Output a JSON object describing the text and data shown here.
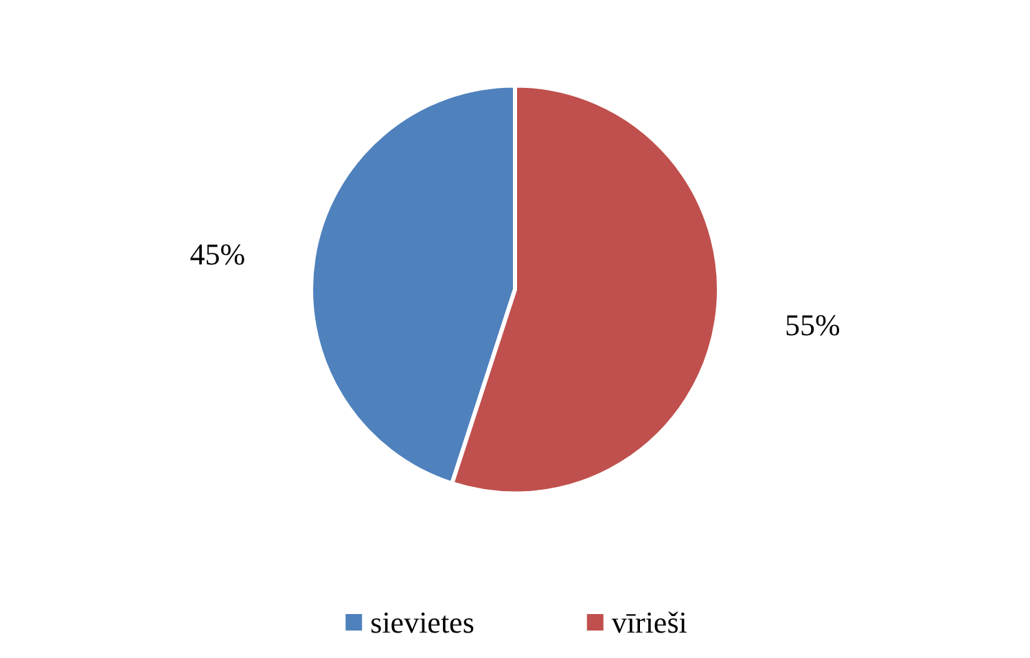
{
  "chart_data": {
    "type": "pie",
    "categories": [
      "sievietes",
      "vīrieši"
    ],
    "values": [
      45,
      55
    ],
    "colors": [
      "#4f81bd",
      "#c0504d"
    ],
    "value_labels": [
      "45%",
      "55%"
    ],
    "legend": "bottom"
  }
}
